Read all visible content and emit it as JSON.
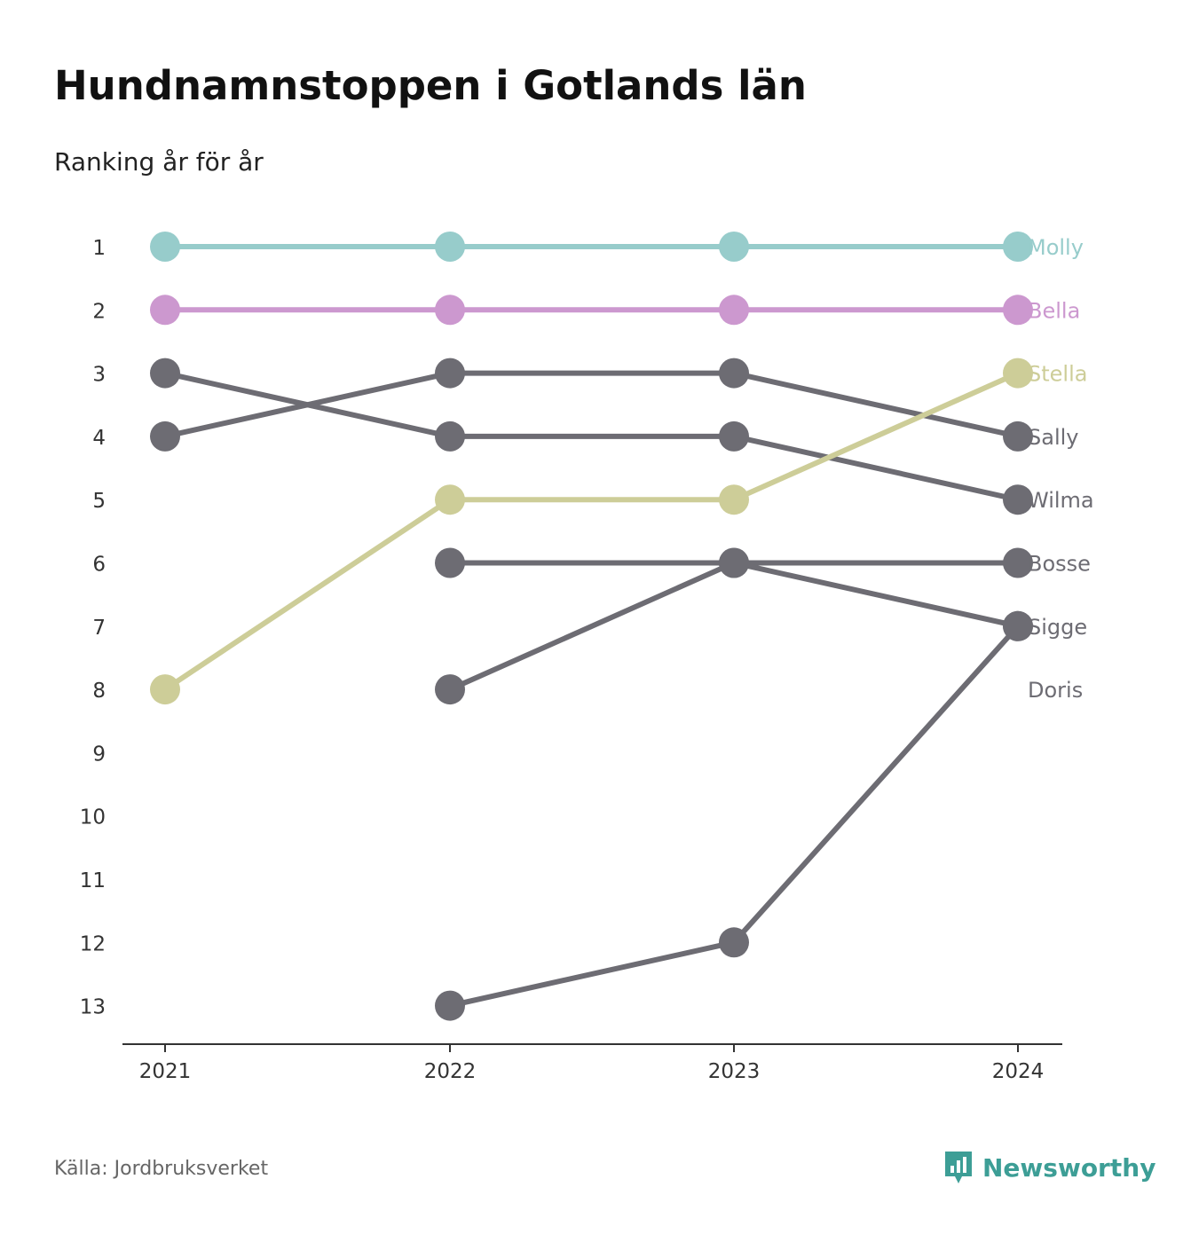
{
  "title": "Hundnamnstoppen i Gotlands län",
  "subtitle": "Ranking år för år",
  "source": "Källa: Jordbruksverket",
  "brand": {
    "name": "Newsworthy",
    "icon": "newsworthy-logo-icon",
    "color": "#3d9e96"
  },
  "chart_data": {
    "type": "line",
    "x": [
      "2021",
      "2022",
      "2023",
      "2024"
    ],
    "y_ticks": [
      "1",
      "2",
      "3",
      "4",
      "5",
      "6",
      "7",
      "8",
      "9",
      "10",
      "11",
      "12",
      "13"
    ],
    "ylim": [
      1,
      13
    ],
    "y_inverted": true,
    "grid": false,
    "legend": "labels at right end of lines",
    "series": [
      {
        "name": "Molly",
        "values": [
          1,
          1,
          1,
          1
        ],
        "color": "#97cccb",
        "label_color": "#97cccb"
      },
      {
        "name": "Bella",
        "values": [
          2,
          2,
          2,
          2
        ],
        "color": "#cc98cf",
        "label_color": "#cc98cf"
      },
      {
        "name": "Stella",
        "values": [
          8,
          5,
          5,
          3
        ],
        "color": "#cdcd98",
        "label_color": "#cdcd98"
      },
      {
        "name": "Sally",
        "values": [
          4,
          3,
          3,
          4
        ],
        "color": "#6d6c73",
        "label_color": "#6d6c73"
      },
      {
        "name": "Wilma",
        "values": [
          3,
          4,
          4,
          5
        ],
        "color": "#6d6c73",
        "label_color": "#6d6c73"
      },
      {
        "name": "Bosse",
        "values": [
          null,
          6,
          6,
          6
        ],
        "color": "#6d6c73",
        "label_color": "#6d6c73"
      },
      {
        "name": "Sigge",
        "values": [
          null,
          13,
          12,
          7
        ],
        "color": "#6d6c73",
        "label_color": "#6d6c73"
      },
      {
        "name": "Doris",
        "values": [
          null,
          8,
          6,
          7
        ],
        "color": "#6d6c73",
        "label_color": "#6d6c73",
        "label_rank": 8
      }
    ]
  }
}
